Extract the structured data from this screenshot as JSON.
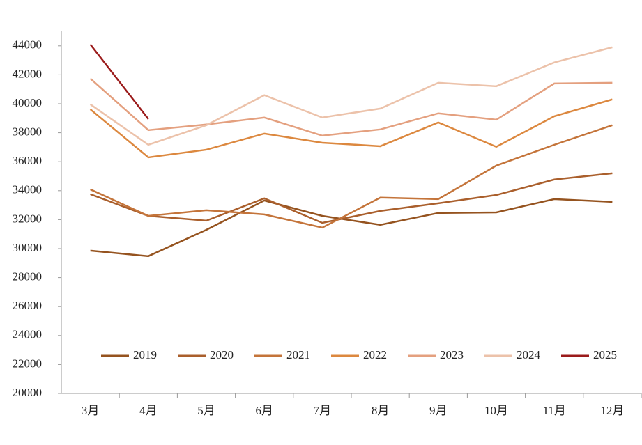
{
  "chart_data": {
    "type": "line",
    "categories": [
      "3月",
      "4月",
      "5月",
      "6月",
      "7月",
      "8月",
      "9月",
      "10月",
      "11月",
      "12月"
    ],
    "series": [
      {
        "name": "2019",
        "color": "#95531f",
        "values": [
          29860,
          29480,
          31300,
          33320,
          32260,
          31640,
          32460,
          32500,
          33420,
          33230
        ]
      },
      {
        "name": "2020",
        "color": "#aa5f2c",
        "values": [
          33760,
          32260,
          31930,
          33470,
          31780,
          32600,
          33130,
          33700,
          34770,
          35200
        ]
      },
      {
        "name": "2021",
        "color": "#c4743a",
        "values": [
          34090,
          32260,
          32650,
          32360,
          31450,
          33520,
          33420,
          35730,
          37170,
          38520
        ]
      },
      {
        "name": "2022",
        "color": "#dc883f",
        "values": [
          39620,
          36300,
          36830,
          37940,
          37310,
          37070,
          38710,
          37030,
          39140,
          40300
        ]
      },
      {
        "name": "2023",
        "color": "#e4a07f",
        "values": [
          41740,
          38180,
          38570,
          39050,
          37800,
          38230,
          39340,
          38900,
          41400,
          41450
        ]
      },
      {
        "name": "2024",
        "color": "#ecc2aa",
        "values": [
          39960,
          37170,
          38520,
          40590,
          39050,
          39670,
          41450,
          41210,
          42850,
          43900
        ]
      },
      {
        "name": "2025",
        "color": "#9b1b1b",
        "values": [
          44100,
          38950,
          null,
          null,
          null,
          null,
          null,
          null,
          null,
          null
        ]
      }
    ],
    "ylim": [
      20000,
      45000
    ],
    "yticks": [
      20000,
      22000,
      24000,
      26000,
      28000,
      30000,
      32000,
      34000,
      36000,
      38000,
      40000,
      42000,
      44000
    ],
    "legend": "bottom"
  }
}
